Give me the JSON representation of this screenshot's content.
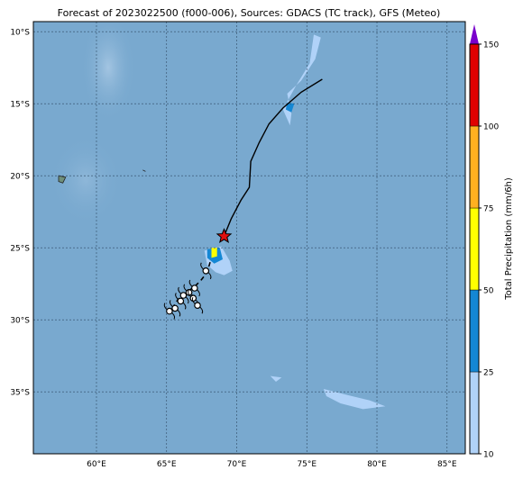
{
  "map": {
    "title": "Forecast of 2023022500 (f000-006), Sources: GDACS (TC track), GFS (Meteo)",
    "lat_ticks": [
      {
        "value": -10,
        "label": "10°S"
      },
      {
        "value": -15,
        "label": "15°S"
      },
      {
        "value": -20,
        "label": "20°S"
      },
      {
        "value": -25,
        "label": "25°S"
      },
      {
        "value": -30,
        "label": "30°S"
      },
      {
        "value": -35,
        "label": "35°S"
      }
    ],
    "lon_ticks": [
      {
        "value": 60,
        "label": "60°E"
      },
      {
        "value": 65,
        "label": "65°E"
      },
      {
        "value": 70,
        "label": "70°E"
      },
      {
        "value": 75,
        "label": "75°E"
      },
      {
        "value": 80,
        "label": "80°E"
      },
      {
        "value": 85,
        "label": "85°E"
      }
    ],
    "extent": {
      "lon_min": 55.5,
      "lon_max": 86.3,
      "lat_min": -39.3,
      "lat_max": -9.3
    },
    "colors": {
      "ocean": "#79a9cf",
      "gridline": "#2f4a64",
      "track": "#000000",
      "storm_marker": "#e01010"
    },
    "track_forecast": [
      [
        76.1,
        -13.3
      ],
      [
        74.6,
        -14.2
      ],
      [
        73.3,
        -15.3
      ],
      [
        72.3,
        -16.4
      ],
      [
        71.6,
        -17.7
      ],
      [
        71.0,
        -19.0
      ],
      [
        70.9,
        -20.8
      ],
      [
        70.3,
        -21.7
      ],
      [
        69.6,
        -23.0
      ],
      [
        69.1,
        -24.2
      ]
    ],
    "track_past": [
      [
        68.1,
        -26.0
      ],
      [
        67.9,
        -26.7
      ],
      [
        67.5,
        -27.2
      ],
      [
        67.0,
        -27.7
      ],
      [
        66.4,
        -28.1
      ],
      [
        65.8,
        -28.6
      ],
      [
        65.4,
        -29.2
      ]
    ],
    "current_position": [
      69.1,
      -24.2
    ],
    "past_positions": [
      [
        67.8,
        -26.6
      ],
      [
        67.0,
        -27.8
      ],
      [
        66.6,
        -28.1
      ],
      [
        66.2,
        -28.3
      ],
      [
        66.9,
        -28.5
      ],
      [
        66.0,
        -28.7
      ],
      [
        67.2,
        -29.0
      ],
      [
        65.6,
        -29.2
      ],
      [
        65.2,
        -29.4
      ]
    ],
    "precipitation_areas": [
      {
        "level": 1,
        "points": [
          [
            67.7,
            -25.2
          ],
          [
            68.9,
            -24.9
          ],
          [
            69.5,
            -25.9
          ],
          [
            69.7,
            -26.6
          ],
          [
            69.1,
            -26.9
          ],
          [
            68.5,
            -26.7
          ],
          [
            67.9,
            -26.2
          ]
        ]
      },
      {
        "level": 2,
        "points": [
          [
            67.9,
            -25.1
          ],
          [
            68.8,
            -25.0
          ],
          [
            69.0,
            -25.8
          ],
          [
            68.4,
            -26.1
          ],
          [
            67.9,
            -25.7
          ]
        ]
      },
      {
        "level": 3,
        "points": [
          [
            68.2,
            -25.0
          ],
          [
            68.6,
            -25.0
          ],
          [
            68.6,
            -25.6
          ],
          [
            68.2,
            -25.7
          ]
        ]
      },
      {
        "level": 1,
        "points": [
          [
            75.5,
            -10.2
          ],
          [
            76.0,
            -10.4
          ],
          [
            75.6,
            -11.9
          ],
          [
            74.6,
            -13.4
          ],
          [
            73.6,
            -14.3
          ],
          [
            73.9,
            -15.7
          ],
          [
            73.8,
            -16.5
          ],
          [
            73.3,
            -15.4
          ],
          [
            74.2,
            -13.8
          ],
          [
            75.2,
            -12.2
          ]
        ]
      },
      {
        "level": 2,
        "points": [
          [
            73.6,
            -14.9
          ],
          [
            74.1,
            -15.0
          ],
          [
            73.9,
            -15.6
          ],
          [
            73.5,
            -15.4
          ]
        ]
      },
      {
        "level": 1,
        "points": [
          [
            76.2,
            -34.8
          ],
          [
            77.8,
            -35.2
          ],
          [
            79.5,
            -35.6
          ],
          [
            80.6,
            -36.0
          ],
          [
            79.0,
            -36.2
          ],
          [
            77.4,
            -35.8
          ],
          [
            76.4,
            -35.3
          ]
        ]
      },
      {
        "level": 1,
        "points": [
          [
            72.4,
            -33.9
          ],
          [
            73.2,
            -34.0
          ],
          [
            72.8,
            -34.3
          ]
        ]
      }
    ],
    "islands": [
      [
        [
          57.3,
          -20.0
        ],
        [
          57.8,
          -20.1
        ],
        [
          57.6,
          -20.5
        ],
        [
          57.3,
          -20.4
        ]
      ],
      [
        [
          63.3,
          -19.6
        ],
        [
          63.5,
          -19.7
        ]
      ]
    ]
  },
  "colorbar": {
    "label": "Total Precipitation (mm/6h)",
    "ticks": [
      "10",
      "25",
      "50",
      "75",
      "100",
      "150"
    ],
    "bands": [
      {
        "from": 10,
        "to": 25,
        "color": "#b0d2f8"
      },
      {
        "from": 25,
        "to": 50,
        "color": "#1487d4"
      },
      {
        "from": 50,
        "to": 75,
        "color": "#ffff00"
      },
      {
        "from": 75,
        "to": 100,
        "color": "#ffb020"
      },
      {
        "from": 100,
        "to": 150,
        "color": "#e00000"
      }
    ],
    "extend_color": "#7a00cc",
    "levels_colors": [
      "#b0d2f8",
      "#1487d4",
      "#ffff00",
      "#ffb020"
    ]
  }
}
